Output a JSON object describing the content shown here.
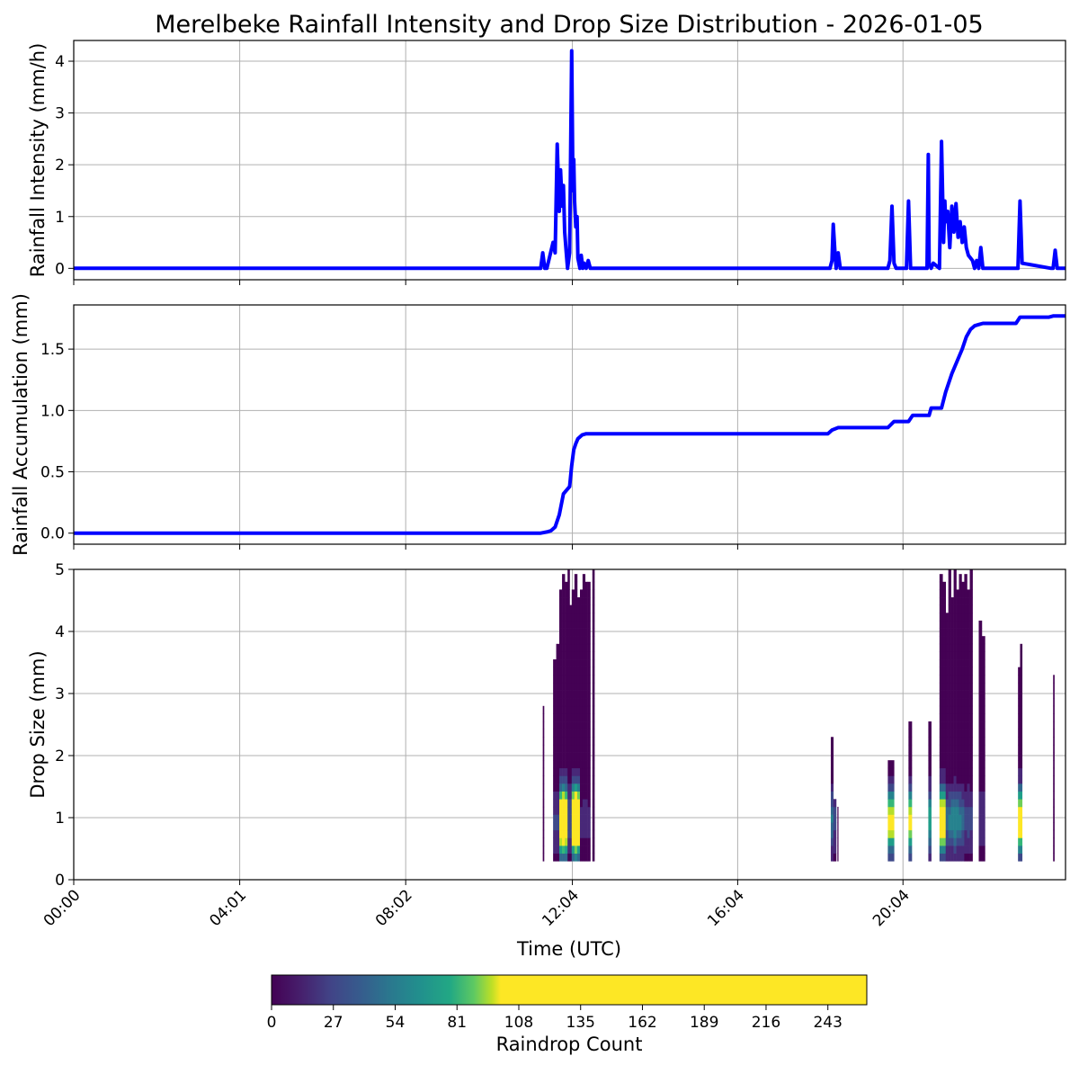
{
  "title": "Merelbeke Rainfall Intensity and Drop Size Distribution - 2026-01-05",
  "x_axis": {
    "label": "Time (UTC)",
    "range_hours": [
      0,
      24
    ],
    "tick_hours": [
      0,
      4.0167,
      8.0333,
      12.0667,
      16.0667,
      20.0667
    ],
    "tick_labels": [
      "00:00",
      "04:01",
      "08:02",
      "12:04",
      "16:04",
      "20:04"
    ]
  },
  "colors": {
    "line": "#0000ff",
    "grid": "#b0b0b0"
  },
  "chart_data": [
    {
      "type": "line",
      "name": "intensity",
      "ylabel": "Rainfall Intensity (mm/h)",
      "ylim": [
        -0.22,
        4.4
      ],
      "yticks": [
        0,
        1,
        2,
        3,
        4
      ],
      "ytick_labels": [
        "0",
        "1",
        "2",
        "3",
        "4"
      ],
      "grid": true,
      "x_hours": [
        0,
        11.3,
        11.35,
        11.4,
        11.45,
        11.6,
        11.65,
        11.7,
        11.75,
        11.78,
        11.82,
        11.85,
        11.88,
        11.92,
        11.95,
        12.0,
        12.05,
        12.08,
        12.1,
        12.12,
        12.15,
        12.18,
        12.2,
        12.25,
        12.28,
        12.32,
        12.35,
        12.4,
        12.45,
        12.5,
        12.55,
        12.6,
        12.65,
        18.3,
        18.35,
        18.38,
        18.42,
        18.45,
        18.5,
        18.55,
        18.6,
        19.7,
        19.75,
        19.8,
        19.85,
        19.9,
        20.15,
        20.2,
        20.25,
        20.3,
        20.65,
        20.68,
        20.7,
        20.75,
        20.8,
        20.95,
        21.0,
        21.05,
        21.08,
        21.1,
        21.15,
        21.2,
        21.25,
        21.3,
        21.35,
        21.4,
        21.45,
        21.5,
        21.55,
        21.6,
        21.65,
        21.7,
        21.75,
        21.8,
        21.85,
        21.9,
        21.95,
        22.0,
        22.05,
        22.1,
        22.15,
        22.2,
        22.25,
        22.35,
        22.8,
        22.85,
        22.9,
        22.95,
        23.65,
        23.7,
        23.75,
        23.8,
        24
      ],
      "y_mmh": [
        0,
        0,
        0.3,
        0,
        0,
        0.5,
        0.3,
        2.4,
        1.1,
        1.9,
        1.2,
        1.6,
        0.7,
        0.3,
        0,
        0.3,
        4.2,
        1.5,
        2.1,
        1.3,
        0.8,
        1.0,
        0.2,
        0,
        0.25,
        0,
        0.1,
        0,
        0.15,
        0,
        0,
        0,
        0,
        0,
        0.15,
        0.85,
        0.3,
        0,
        0.3,
        0,
        0,
        0,
        0.15,
        1.2,
        0.1,
        0,
        0,
        1.3,
        0,
        0,
        0,
        2.2,
        0.1,
        0,
        0.1,
        0,
        2.45,
        0.5,
        1.3,
        0.9,
        1.1,
        0.4,
        1.2,
        0.7,
        1.25,
        0.6,
        0.9,
        0.5,
        0.8,
        0.4,
        0.25,
        0.2,
        0.15,
        0,
        0.15,
        0,
        0.4,
        0,
        0,
        0,
        0,
        0,
        0,
        0,
        0,
        0,
        1.3,
        0.1,
        0,
        0,
        0.35,
        0,
        0
      ],
      "linewidth_note": "thick blue line"
    },
    {
      "type": "line",
      "name": "accumulation",
      "ylabel": "Rainfall Accumulation (mm)",
      "ylim": [
        -0.09,
        1.86
      ],
      "yticks": [
        0,
        0.5,
        1.0,
        1.5
      ],
      "ytick_labels": [
        "0.0",
        "0.5",
        "1.0",
        "1.5"
      ],
      "grid": true,
      "x_hours": [
        0,
        11.3,
        11.45,
        11.55,
        11.65,
        11.75,
        11.85,
        12.0,
        12.05,
        12.1,
        12.15,
        12.2,
        12.3,
        12.4,
        18.25,
        18.35,
        18.5,
        19.7,
        19.85,
        20.2,
        20.3,
        20.7,
        20.75,
        21.0,
        21.1,
        21.25,
        21.4,
        21.5,
        21.6,
        21.7,
        21.8,
        21.9,
        22.0,
        22.1,
        22.8,
        22.9,
        23.6,
        23.7,
        24
      ],
      "y_mm": [
        0,
        0,
        0.01,
        0.02,
        0.05,
        0.15,
        0.32,
        0.38,
        0.55,
        0.68,
        0.73,
        0.77,
        0.8,
        0.81,
        0.81,
        0.84,
        0.86,
        0.86,
        0.91,
        0.91,
        0.96,
        0.96,
        1.02,
        1.02,
        1.15,
        1.3,
        1.42,
        1.5,
        1.6,
        1.66,
        1.69,
        1.7,
        1.71,
        1.71,
        1.71,
        1.76,
        1.76,
        1.77,
        1.77
      ]
    },
    {
      "type": "heatmap",
      "name": "drop-size-distribution",
      "ylabel": "Drop Size (mm)",
      "ylim": [
        0,
        5
      ],
      "yticks": [
        0,
        1,
        2,
        3,
        4,
        5
      ],
      "ytick_labels": [
        "0",
        "1",
        "2",
        "3",
        "4",
        "5"
      ],
      "grid": true,
      "colorbar": {
        "label": "Raindrop Count",
        "range": [
          0,
          260
        ],
        "ticks": [
          0,
          27,
          54,
          81,
          108,
          135,
          162,
          189,
          216,
          243
        ],
        "tick_labels": [
          "0",
          "27",
          "54",
          "81",
          "108",
          "135",
          "162",
          "189",
          "216",
          "243"
        ],
        "saturation": 100,
        "colormap": "viridis"
      },
      "bursts": [
        {
          "x0": 11.35,
          "x1": 11.38,
          "top": 2.7,
          "peak": 5
        },
        {
          "x0": 11.6,
          "x1": 11.75,
          "top": 3.8,
          "peak": 20
        },
        {
          "x0": 11.75,
          "x1": 11.95,
          "top": 5.0,
          "peak": 200
        },
        {
          "x0": 11.95,
          "x1": 12.05,
          "top": 5.0,
          "peak": 30
        },
        {
          "x0": 12.05,
          "x1": 12.25,
          "top": 5.0,
          "peak": 220
        },
        {
          "x0": 12.25,
          "x1": 12.5,
          "top": 5.0,
          "peak": 10
        },
        {
          "x0": 12.55,
          "x1": 12.6,
          "top": 5.0,
          "peak": 5
        },
        {
          "x0": 18.32,
          "x1": 18.38,
          "top": 2.4,
          "peak": 40
        },
        {
          "x0": 18.38,
          "x1": 18.45,
          "top": 1.4,
          "peak": 20
        },
        {
          "x0": 18.48,
          "x1": 18.5,
          "top": 1.1,
          "peak": 5
        },
        {
          "x0": 19.7,
          "x1": 19.85,
          "top": 1.9,
          "peak": 120
        },
        {
          "x0": 20.2,
          "x1": 20.28,
          "top": 2.8,
          "peak": 100
        },
        {
          "x0": 20.68,
          "x1": 20.75,
          "top": 2.5,
          "peak": 60
        },
        {
          "x0": 20.95,
          "x1": 21.1,
          "top": 5.0,
          "peak": 160
        },
        {
          "x0": 21.1,
          "x1": 21.55,
          "top": 5.0,
          "peak": 50
        },
        {
          "x0": 21.55,
          "x1": 21.75,
          "top": 5.0,
          "peak": 25
        },
        {
          "x0": 21.9,
          "x1": 22.05,
          "top": 4.2,
          "peak": 15
        },
        {
          "x0": 22.85,
          "x1": 22.95,
          "top": 3.8,
          "peak": 140
        },
        {
          "x0": 23.7,
          "x1": 23.73,
          "top": 3.3,
          "peak": 5
        }
      ]
    }
  ]
}
